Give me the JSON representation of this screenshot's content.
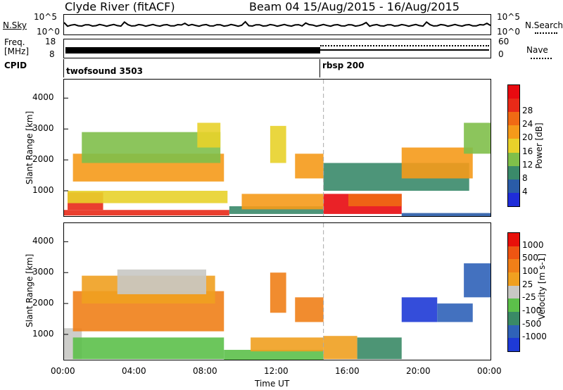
{
  "header": {
    "station": "Clyde River (fitACF)",
    "beam_range": "Beam 04  15/Aug/2015 - 16/Aug/2015"
  },
  "nsky_panel": {
    "left_label": "N.Sky",
    "right_label": "N.Search",
    "left_ticks": [
      "10^5",
      "10^0"
    ],
    "right_ticks": [
      "10^5",
      "10^0"
    ]
  },
  "freq_panel": {
    "left_label_top": "Freq.",
    "left_label_unit": "[MHz]",
    "right_label": "Nave",
    "left_ticks": [
      "18",
      "8"
    ],
    "right_ticks": [
      "60",
      "0"
    ]
  },
  "cpid_panel": {
    "label": "CPID",
    "programs": [
      {
        "name": "twofsound 3503",
        "start": "00:00"
      },
      {
        "name": "rbsp 200",
        "start": "14:35"
      }
    ]
  },
  "x_axis": {
    "label": "Time UT",
    "ticks": [
      "00:00",
      "04:00",
      "08:00",
      "12:00",
      "16:00",
      "20:00",
      "00:00"
    ]
  },
  "chart_data": [
    {
      "type": "heatmap",
      "title": "Power",
      "ylabel": "Slant Range [km]",
      "xlabel": "Time UT",
      "x_range_hours": [
        0,
        24
      ],
      "ylim": [
        180,
        4600
      ],
      "y_ticks": [
        1000,
        2000,
        3000,
        4000
      ],
      "colorbar": {
        "label": "Power [dB]",
        "ticks": [
          "4",
          "8",
          "12",
          "16",
          "20",
          "24",
          "28"
        ],
        "colors": [
          "#1f2dd9",
          "#2a5ca8",
          "#3a8a6a",
          "#7fbf4a",
          "#e8d12a",
          "#f59a1a",
          "#f06a14",
          "#e82a18",
          "#e80a10"
        ]
      },
      "patches": [
        {
          "t0": 0.0,
          "t1": 9.3,
          "r0": 200,
          "r1": 380,
          "level": 7
        },
        {
          "t0": 0.2,
          "t1": 2.2,
          "r0": 380,
          "r1": 950,
          "level": 7
        },
        {
          "t0": 0.2,
          "t1": 9.2,
          "r0": 600,
          "r1": 1000,
          "level": 4
        },
        {
          "t0": 0.5,
          "t1": 9.0,
          "r0": 1300,
          "r1": 2200,
          "level": 5
        },
        {
          "t0": 1.0,
          "t1": 8.8,
          "r0": 1900,
          "r1": 2900,
          "level": 3
        },
        {
          "t0": 7.5,
          "t1": 8.8,
          "r0": 2400,
          "r1": 3200,
          "level": 4
        },
        {
          "t0": 9.3,
          "t1": 14.6,
          "r0": 250,
          "r1": 500,
          "level": 2
        },
        {
          "t0": 10.0,
          "t1": 14.6,
          "r0": 400,
          "r1": 900,
          "level": 5
        },
        {
          "t0": 11.6,
          "t1": 12.5,
          "r0": 1900,
          "r1": 3100,
          "level": 4
        },
        {
          "t0": 13.0,
          "t1": 14.6,
          "r0": 1400,
          "r1": 2200,
          "level": 5
        },
        {
          "t0": 14.6,
          "t1": 19.0,
          "r0": 250,
          "r1": 900,
          "level": 8
        },
        {
          "t0": 16.0,
          "t1": 19.0,
          "r0": 500,
          "r1": 900,
          "level": 6
        },
        {
          "t0": 14.6,
          "t1": 22.8,
          "r0": 1000,
          "r1": 1900,
          "level": 2
        },
        {
          "t0": 19.0,
          "t1": 23.0,
          "r0": 1400,
          "r1": 2400,
          "level": 5
        },
        {
          "t0": 22.5,
          "t1": 24.0,
          "r0": 2200,
          "r1": 3200,
          "level": 3
        },
        {
          "t0": 19.0,
          "t1": 24.0,
          "r0": 180,
          "r1": 280,
          "level": 1
        }
      ]
    },
    {
      "type": "heatmap",
      "title": "Velocity",
      "ylabel": "Slant Range [km]",
      "xlabel": "Time UT",
      "x_range_hours": [
        0,
        24
      ],
      "ylim": [
        180,
        4600
      ],
      "y_ticks": [
        1000,
        2000,
        3000,
        4000
      ],
      "colorbar": {
        "label": "Velocity [m s-1]",
        "ticks": [
          "1000",
          "500",
          "100",
          "25",
          "-25",
          "-100",
          "-500",
          "-1000"
        ],
        "colors": [
          "#1e3ad6",
          "#2f62b8",
          "#3a8a66",
          "#5cc04a",
          "#c8c8c4",
          "#f0a020",
          "#f07f18",
          "#ee5512",
          "#e8100a"
        ]
      },
      "patches": [
        {
          "t0": 0.0,
          "t1": 1.0,
          "r0": 200,
          "r1": 1200,
          "level": 4
        },
        {
          "t0": 0.5,
          "t1": 9.0,
          "r0": 200,
          "r1": 900,
          "level": 3
        },
        {
          "t0": 0.5,
          "t1": 9.0,
          "r0": 1100,
          "r1": 2400,
          "level": 6
        },
        {
          "t0": 1.0,
          "t1": 8.5,
          "r0": 2000,
          "r1": 2900,
          "level": 5
        },
        {
          "t0": 3.0,
          "t1": 8.0,
          "r0": 2300,
          "r1": 3100,
          "level": 4
        },
        {
          "t0": 9.0,
          "t1": 14.6,
          "r0": 180,
          "r1": 500,
          "level": 3
        },
        {
          "t0": 10.5,
          "t1": 14.6,
          "r0": 450,
          "r1": 900,
          "level": 5
        },
        {
          "t0": 11.6,
          "t1": 12.5,
          "r0": 1700,
          "r1": 3000,
          "level": 6
        },
        {
          "t0": 13.0,
          "t1": 14.6,
          "r0": 1400,
          "r1": 2200,
          "level": 6
        },
        {
          "t0": 14.6,
          "t1": 16.5,
          "r0": 200,
          "r1": 950,
          "level": 5
        },
        {
          "t0": 16.5,
          "t1": 19.0,
          "r0": 200,
          "r1": 900,
          "level": 2
        },
        {
          "t0": 19.0,
          "t1": 21.0,
          "r0": 1400,
          "r1": 2200,
          "level": 0
        },
        {
          "t0": 21.0,
          "t1": 23.0,
          "r0": 1400,
          "r1": 2000,
          "level": 1
        },
        {
          "t0": 22.5,
          "t1": 24.0,
          "r0": 2200,
          "r1": 3300,
          "level": 1
        }
      ]
    }
  ]
}
